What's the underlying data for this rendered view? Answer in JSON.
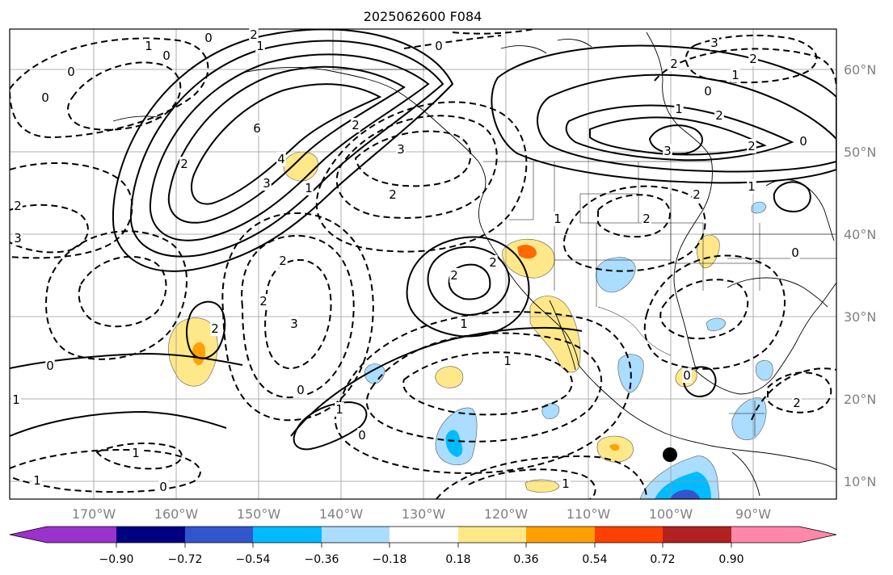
{
  "title": "2025062600 F084",
  "longitude_labels": [
    "170°W",
    "160°W",
    "150°W",
    "140°W",
    "130°W",
    "120°W",
    "110°W",
    "100°W",
    "90°W"
  ],
  "latitude_labels": [
    "60°N",
    "50°N",
    "40°N",
    "30°N",
    "20°N",
    "10°N"
  ],
  "colorbar": {
    "tick_labels": [
      "−0.90",
      "−0.72",
      "−0.54",
      "−0.36",
      "−0.18",
      "0.18",
      "0.36",
      "0.54",
      "0.72",
      "0.90"
    ],
    "colors": [
      "#9933cc",
      "#000080",
      "#3355cc",
      "#00bbff",
      "#aaddff",
      "#ffffff",
      "#ffe88a",
      "#ffa000",
      "#ff4000",
      "#b22222",
      "#ff88aa"
    ],
    "extend": "both"
  },
  "contour_labels": [
    {
      "text": "1"
    },
    {
      "text": "0"
    },
    {
      "text": "2"
    },
    {
      "text": "1"
    },
    {
      "text": "0"
    },
    {
      "text": "0"
    },
    {
      "text": "0"
    },
    {
      "text": "3"
    },
    {
      "text": "2"
    },
    {
      "text": "0"
    },
    {
      "text": "1"
    },
    {
      "text": "2"
    },
    {
      "text": "6"
    },
    {
      "text": "4"
    },
    {
      "text": "2"
    },
    {
      "text": "3"
    },
    {
      "text": "3"
    },
    {
      "text": "2"
    },
    {
      "text": "1"
    },
    {
      "text": "2"
    },
    {
      "text": "3"
    },
    {
      "text": "2"
    },
    {
      "text": "0"
    },
    {
      "text": "2"
    },
    {
      "text": "1"
    },
    {
      "text": "2"
    },
    {
      "text": "2"
    },
    {
      "text": "2"
    },
    {
      "text": "3"
    },
    {
      "text": "2"
    },
    {
      "text": "1"
    },
    {
      "text": "2"
    },
    {
      "text": "0"
    },
    {
      "text": "1"
    },
    {
      "text": "2"
    },
    {
      "text": "0"
    },
    {
      "text": "1"
    },
    {
      "text": "1"
    },
    {
      "text": "1"
    },
    {
      "text": "0"
    },
    {
      "text": "1"
    },
    {
      "text": "1"
    },
    {
      "text": "0"
    },
    {
      "text": "1"
    },
    {
      "text": "2"
    },
    {
      "text": "1"
    },
    {
      "text": "0"
    },
    {
      "text": "0"
    },
    {
      "text": "2"
    },
    {
      "text": "3"
    },
    {
      "text": "2"
    },
    {
      "text": "0"
    }
  ],
  "marker": {
    "type": "filled-circle",
    "color": "#000000"
  }
}
